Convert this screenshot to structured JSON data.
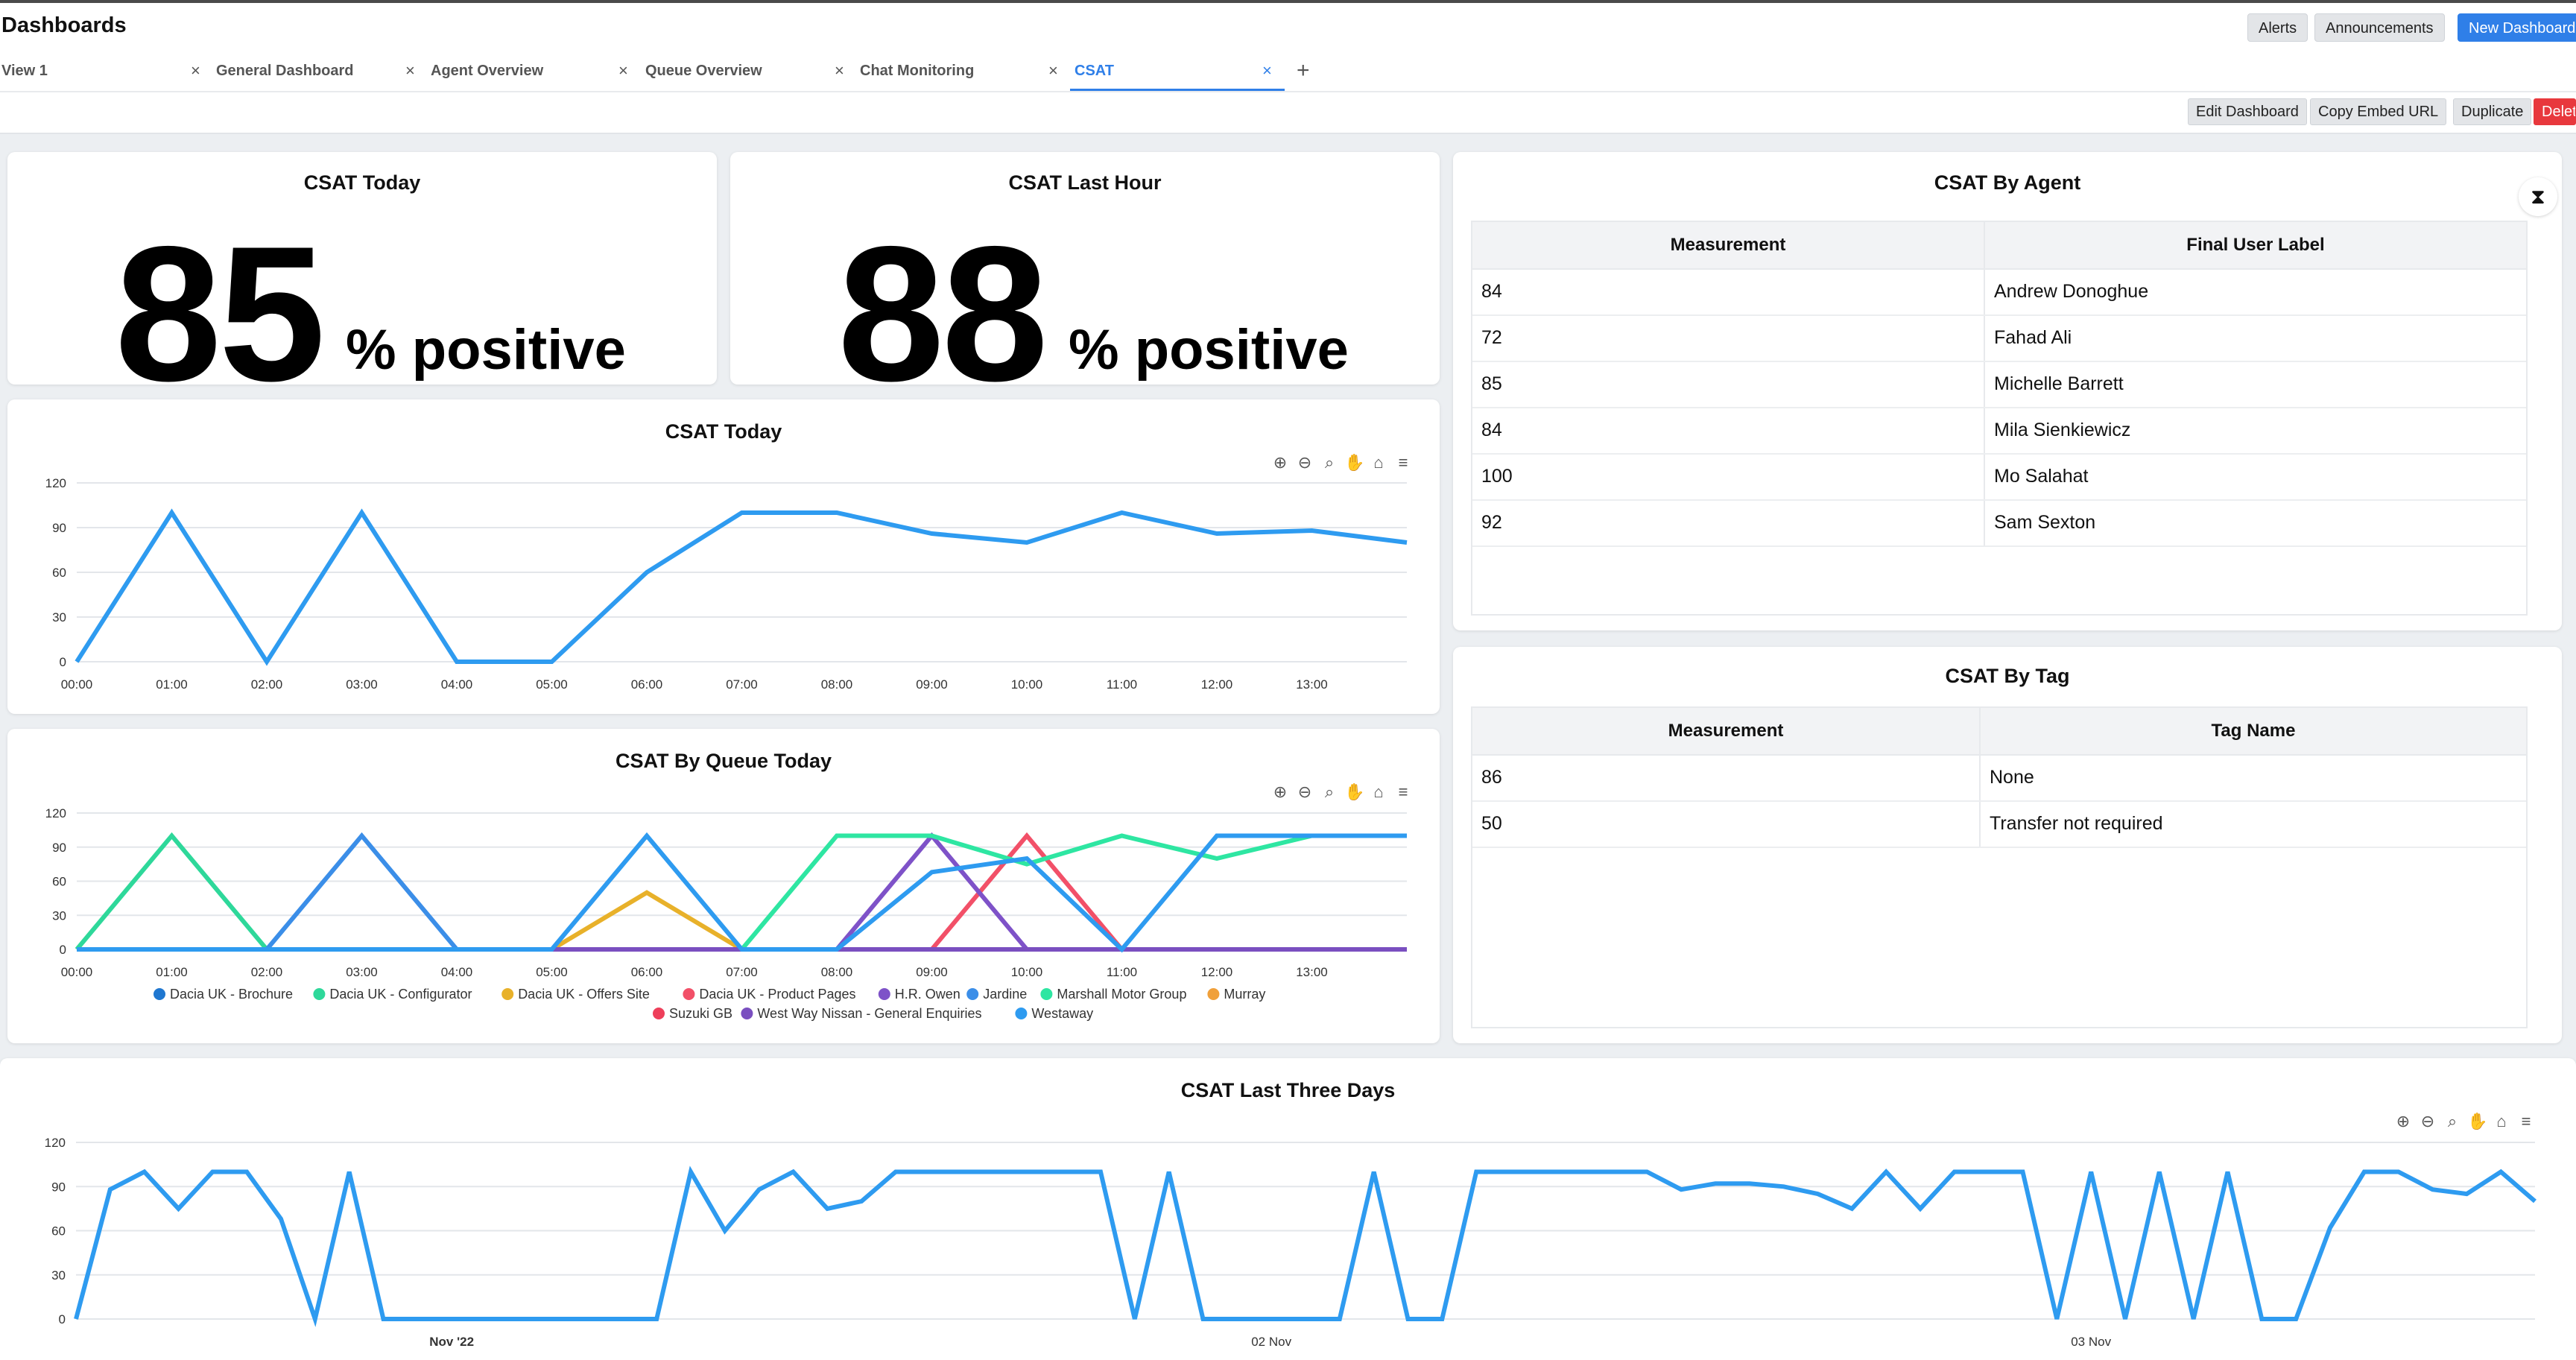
{
  "app": {
    "title": "Dashboards"
  },
  "header_buttons": {
    "alerts": "Alerts",
    "announcements": "Announcements",
    "new_dashboard": "New Dashboard"
  },
  "tabs": [
    {
      "label": "View 1",
      "close": "×"
    },
    {
      "label": "General Dashboard",
      "close": "×"
    },
    {
      "label": "Agent Overview",
      "close": "×"
    },
    {
      "label": "Queue Overview",
      "close": "×"
    },
    {
      "label": "Chat Monitoring",
      "close": "×"
    },
    {
      "label": "CSAT",
      "close": "×",
      "active": true
    }
  ],
  "tab_add": "+",
  "actions": {
    "edit": "Edit Dashboard",
    "copy_embed": "Copy Embed URL",
    "duplicate": "Duplicate",
    "delete": "Delete"
  },
  "colors": {
    "accent": "#2f7fe8",
    "delete": "#e8383d",
    "line": "#2e9bf0"
  },
  "widgets": {
    "csat_today_stat": {
      "title": "CSAT Today",
      "value": "85",
      "unit": "% positive"
    },
    "csat_last_hour_stat": {
      "title": "CSAT Last Hour",
      "value": "88",
      "unit": "% positive"
    },
    "csat_by_agent": {
      "title": "CSAT By Agent",
      "columns": [
        "Measurement",
        "Final User Label"
      ],
      "rows": [
        [
          "84",
          "Andrew Donoghue"
        ],
        [
          "72",
          "Fahad Ali"
        ],
        [
          "85",
          "Michelle Barrett"
        ],
        [
          "84",
          "Mila Sienkiewicz"
        ],
        [
          "100",
          "Mo Salahat"
        ],
        [
          "92",
          "Sam Sexton"
        ]
      ]
    },
    "csat_by_tag": {
      "title": "CSAT By Tag",
      "columns": [
        "Measurement",
        "Tag Name"
      ],
      "rows": [
        [
          "86",
          "None"
        ],
        [
          "50",
          "Transfer not required"
        ]
      ]
    },
    "csat_today_chart": {
      "title": "CSAT Today"
    },
    "csat_by_queue_chart": {
      "title": "CSAT By Queue Today"
    },
    "csat_three_days_chart": {
      "title": "CSAT Last Three Days"
    }
  },
  "chart_toolbar_icons": [
    "zoom-in-icon",
    "zoom-out-icon",
    "zoom-select-icon",
    "pan-hand-icon",
    "home-icon",
    "menu-icon"
  ],
  "chart_data": [
    {
      "type": "line",
      "title": "CSAT Today",
      "ylim": [
        0,
        120
      ],
      "yticks": [
        "0",
        "30",
        "60",
        "90",
        "120"
      ],
      "x_labels": [
        "00:00",
        "01:00",
        "02:00",
        "03:00",
        "04:00",
        "05:00",
        "06:00",
        "07:00",
        "08:00",
        "09:00",
        "10:00",
        "11:00",
        "12:00",
        "13:00"
      ],
      "x": [
        0,
        1,
        2,
        3,
        4,
        5,
        6,
        7,
        8,
        9,
        10,
        11,
        12,
        13,
        14
      ],
      "series": [
        {
          "values": [
            0,
            100,
            0,
            100,
            0,
            0,
            60,
            100,
            100,
            86,
            80,
            100,
            86,
            88,
            80
          ],
          "color": "#2e9bf0"
        }
      ]
    },
    {
      "type": "line",
      "title": "CSAT By Queue Today",
      "ylim": [
        0,
        120
      ],
      "yticks": [
        "0",
        "30",
        "60",
        "90",
        "120"
      ],
      "x_labels": [
        "00:00",
        "01:00",
        "02:00",
        "03:00",
        "04:00",
        "05:00",
        "06:00",
        "07:00",
        "08:00",
        "09:00",
        "10:00",
        "11:00",
        "12:00",
        "13:00"
      ],
      "x": [
        0,
        1,
        2,
        3,
        4,
        5,
        6,
        7,
        8,
        9,
        10,
        11,
        12,
        13,
        14
      ],
      "legend_position": "bottom",
      "series": [
        {
          "name": "Dacia UK - Brochure",
          "color": "#1f77d0",
          "values": [
            0,
            0,
            0,
            0,
            0,
            0,
            0,
            0,
            0,
            0,
            0,
            0,
            0,
            0,
            0
          ]
        },
        {
          "name": "Dacia UK - Configurator",
          "color": "#2ed89a",
          "values": [
            0,
            100,
            0,
            0,
            0,
            0,
            0,
            0,
            0,
            0,
            0,
            0,
            0,
            0,
            0
          ]
        },
        {
          "name": "Dacia UK - Offers Site",
          "color": "#e8b12a",
          "values": [
            0,
            0,
            0,
            0,
            0,
            0,
            50,
            0,
            0,
            0,
            0,
            0,
            0,
            0,
            0
          ]
        },
        {
          "name": "Dacia UK - Product Pages",
          "color": "#f25068",
          "values": [
            0,
            0,
            0,
            0,
            0,
            0,
            0,
            0,
            0,
            0,
            100,
            0,
            0,
            0,
            0
          ]
        },
        {
          "name": "H.R. Owen",
          "color": "#7e52c8",
          "values": [
            0,
            0,
            0,
            0,
            0,
            0,
            0,
            0,
            0,
            100,
            0,
            0,
            0,
            0,
            0
          ]
        },
        {
          "name": "Jardine",
          "color": "#3b8ee8",
          "values": [
            0,
            0,
            0,
            100,
            0,
            0,
            0,
            0,
            0,
            0,
            0,
            0,
            0,
            0,
            0
          ]
        },
        {
          "name": "Marshall Motor Group",
          "color": "#2ee6a2",
          "values": [
            0,
            0,
            0,
            0,
            0,
            0,
            0,
            0,
            100,
            100,
            75,
            100,
            80,
            100,
            100
          ]
        },
        {
          "name": "Murray",
          "color": "#f0a03a",
          "values": [
            0,
            0,
            0,
            0,
            0,
            0,
            0,
            0,
            0,
            0,
            0,
            0,
            0,
            0,
            0
          ]
        },
        {
          "name": "Suzuki GB",
          "color": "#ee3f5a",
          "values": [
            0,
            0,
            0,
            0,
            0,
            0,
            0,
            0,
            0,
            0,
            0,
            0,
            0,
            0,
            0
          ]
        },
        {
          "name": "West Way Nissan - General Enquiries",
          "color": "#7a4fc0",
          "values": [
            0,
            0,
            0,
            0,
            0,
            0,
            0,
            0,
            0,
            0,
            0,
            0,
            0,
            0,
            0
          ]
        },
        {
          "name": "Westaway",
          "color": "#2e9bf0",
          "values": [
            0,
            0,
            0,
            0,
            0,
            0,
            100,
            0,
            0,
            68,
            80,
            0,
            100,
            100,
            100
          ]
        }
      ]
    },
    {
      "type": "line",
      "title": "CSAT Last Three Days",
      "ylim": [
        0,
        120
      ],
      "yticks": [
        "0",
        "30",
        "60",
        "90",
        "120"
      ],
      "x_labels": [
        "Nov '22",
        "02 Nov",
        "03 Nov"
      ],
      "x_label_hours": [
        5,
        29,
        53
      ],
      "x_range_hours": [
        -6,
        66
      ],
      "series": [
        {
          "color": "#2e9bf0",
          "hours": [
            -6,
            -5,
            -4,
            -3,
            -2,
            -1,
            0,
            1,
            2,
            3,
            4,
            5,
            6,
            7,
            8,
            9,
            10,
            11,
            12,
            13,
            14,
            15,
            16,
            17,
            18,
            19,
            20,
            21,
            22,
            23,
            24,
            25,
            26,
            27,
            28,
            29,
            30,
            31,
            32,
            33,
            34,
            35,
            36,
            37,
            38,
            39,
            40,
            41,
            42,
            43,
            44,
            45,
            46,
            47,
            48,
            49,
            50,
            51,
            52,
            53,
            54,
            55,
            56,
            57,
            58,
            59,
            60,
            61,
            62,
            63,
            64,
            65,
            66
          ],
          "values": [
            0,
            88,
            100,
            75,
            100,
            100,
            68,
            0,
            100,
            0,
            0,
            0,
            0,
            0,
            0,
            0,
            0,
            0,
            100,
            60,
            88,
            100,
            75,
            80,
            100,
            100,
            100,
            100,
            100,
            100,
            100,
            0,
            100,
            0,
            0,
            0,
            0,
            0,
            100,
            0,
            0,
            100,
            100,
            100,
            100,
            100,
            100,
            88,
            92,
            92,
            90,
            85,
            75,
            100,
            75,
            100,
            100,
            100,
            0,
            100,
            0,
            100,
            0,
            100,
            0,
            0,
            62,
            100,
            100,
            88,
            85,
            100,
            80
          ]
        }
      ]
    }
  ]
}
